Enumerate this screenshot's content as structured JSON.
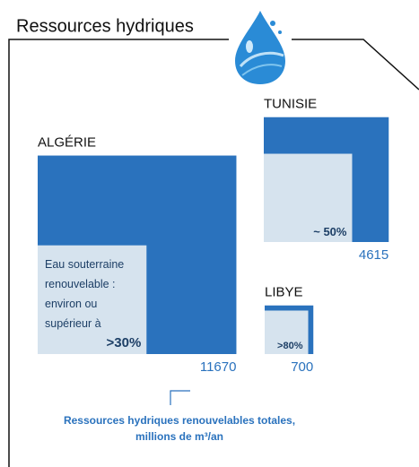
{
  "chart_data": {
    "type": "square",
    "title": "Ressources hydriques",
    "categories": [
      "ALGÉRIE",
      "TUNISIE",
      "LIBYE"
    ],
    "values": [
      11670,
      4615,
      700
    ],
    "color": "#2a72bd",
    "shares": [
      30,
      50,
      80
    ],
    "share_labels": [
      ">30%",
      "~ 50%",
      ">80%"
    ],
    "share_color": "#d6e3ee",
    "share_note": [
      "Eau souterraine",
      "renouvelable :",
      "environ ou",
      "supérieur à"
    ],
    "caption": [
      "Ressources hydriques renouvelables totales,",
      "millions de m³/an"
    ]
  }
}
